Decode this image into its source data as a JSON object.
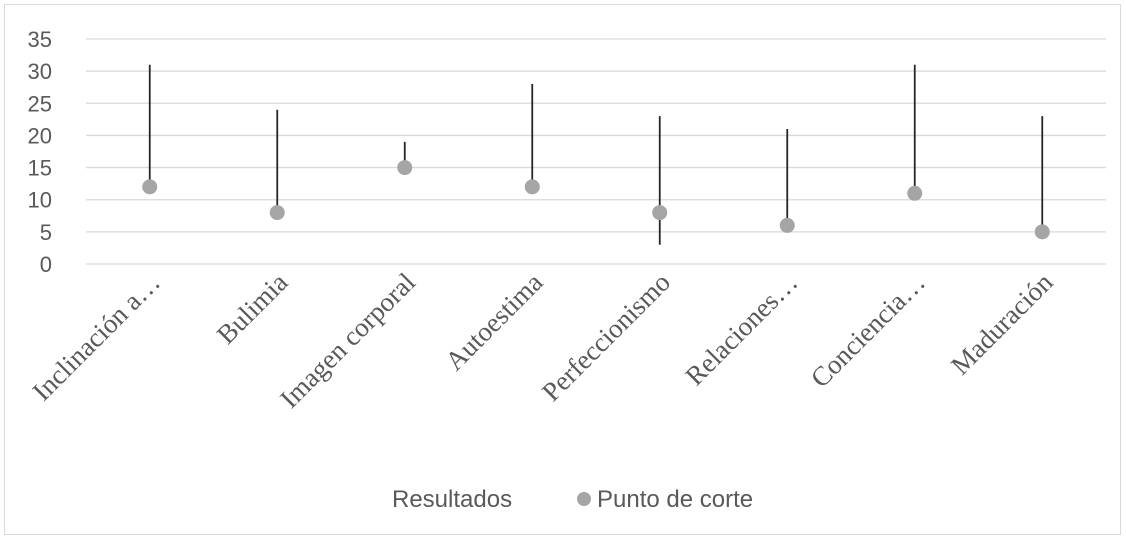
{
  "chart_data": {
    "type": "scatter",
    "categories": [
      "Inclinación a…",
      "Bulimia",
      "Imagen corporal",
      "Autoestima",
      "Perfeccionismo",
      "Relaciones…",
      "Conciencia…",
      "Maduración"
    ],
    "ylim": [
      0,
      35
    ],
    "yticks": [
      0,
      5,
      10,
      15,
      20,
      25,
      30,
      35
    ],
    "grid": true,
    "legend_position": "bottom",
    "series": [
      {
        "name": "Resultados",
        "kind": "range",
        "low": [
          12,
          8,
          15,
          12,
          3,
          6,
          11,
          5
        ],
        "high": [
          31,
          24,
          19,
          28,
          23,
          21,
          31,
          23
        ],
        "color": "#262626"
      },
      {
        "name": "Punto de corte",
        "kind": "marker",
        "values": [
          12,
          8,
          15,
          12,
          8,
          6,
          11,
          5
        ],
        "color": "#a5a5a5"
      }
    ]
  }
}
